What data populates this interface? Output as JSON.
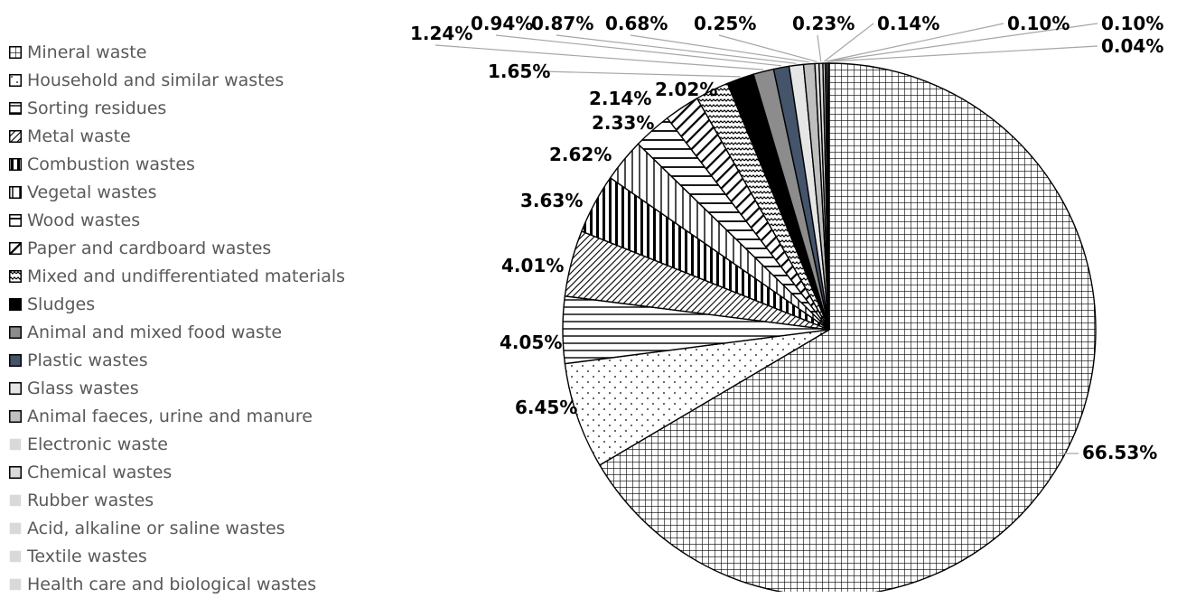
{
  "chart_data": {
    "type": "pie",
    "title": "",
    "legend_position": "left",
    "series": [
      {
        "label": "Mineral waste",
        "value": 66.53,
        "pattern": "grid-fine",
        "display": "66.53%"
      },
      {
        "label": "Household and similar wastes",
        "value": 6.45,
        "pattern": "dots",
        "display": "6.45%"
      },
      {
        "label": "Sorting residues",
        "value": 4.05,
        "pattern": "horizontal-lines",
        "display": "4.05%"
      },
      {
        "label": "Metal waste",
        "value": 4.01,
        "pattern": "diagonal-dense",
        "display": "4.01%"
      },
      {
        "label": "Combustion wastes",
        "value": 3.63,
        "pattern": "vertical-thick",
        "display": "3.63%"
      },
      {
        "label": "Vegetal wastes",
        "value": 2.62,
        "pattern": "vertical-thin",
        "display": "2.62%"
      },
      {
        "label": "Wood wastes",
        "value": 2.33,
        "pattern": "horizontal-wide",
        "display": "2.33%"
      },
      {
        "label": "Paper and cardboard wastes",
        "value": 2.14,
        "pattern": "diagonal-bold",
        "display": "2.14%"
      },
      {
        "label": "Mixed and undifferentiated materials",
        "value": 2.02,
        "pattern": "zigzag",
        "display": "2.02%"
      },
      {
        "label": "Sludges",
        "value": 1.65,
        "pattern": "solid",
        "color": "#000000",
        "display": "1.65%"
      },
      {
        "label": "Animal and mixed food waste",
        "value": 1.24,
        "pattern": "solid",
        "color": "#8c8c8c",
        "display": "1.24%"
      },
      {
        "label": "Plastic wastes",
        "value": 0.94,
        "pattern": "solid",
        "color": "#44546a",
        "display": "0.94%"
      },
      {
        "label": "Glass wastes",
        "value": 0.87,
        "pattern": "solid",
        "color": "#e6e6e6",
        "display": "0.87%"
      },
      {
        "label": "Animal faeces, urine and manure",
        "value": 0.68,
        "pattern": "solid",
        "color": "#bfbfbf",
        "display": "0.68%"
      },
      {
        "label": "Electronic waste",
        "value": 0.25,
        "pattern": "solid",
        "color": "#d9d9d9",
        "display": "0.25%"
      },
      {
        "label": "Chemical wastes",
        "value": 0.23,
        "pattern": "solid",
        "color": "#dcdcdc",
        "display": "0.23%"
      },
      {
        "label": "Rubber wastes",
        "value": 0.14,
        "pattern": "solid",
        "color": "#d9d9d9",
        "display": "0.14%"
      },
      {
        "label": "Acid, alkaline or saline wastes",
        "value": 0.1,
        "pattern": "solid",
        "color": "#d9d9d9",
        "display": "0.10%"
      },
      {
        "label": "Textile wastes",
        "value": 0.1,
        "pattern": "solid",
        "color": "#d9d9d9",
        "display": "0.10%"
      },
      {
        "label": "Health care and biological wastes",
        "value": 0.04,
        "pattern": "solid",
        "color": "#d9d9d9",
        "display": "0.04%"
      }
    ]
  }
}
